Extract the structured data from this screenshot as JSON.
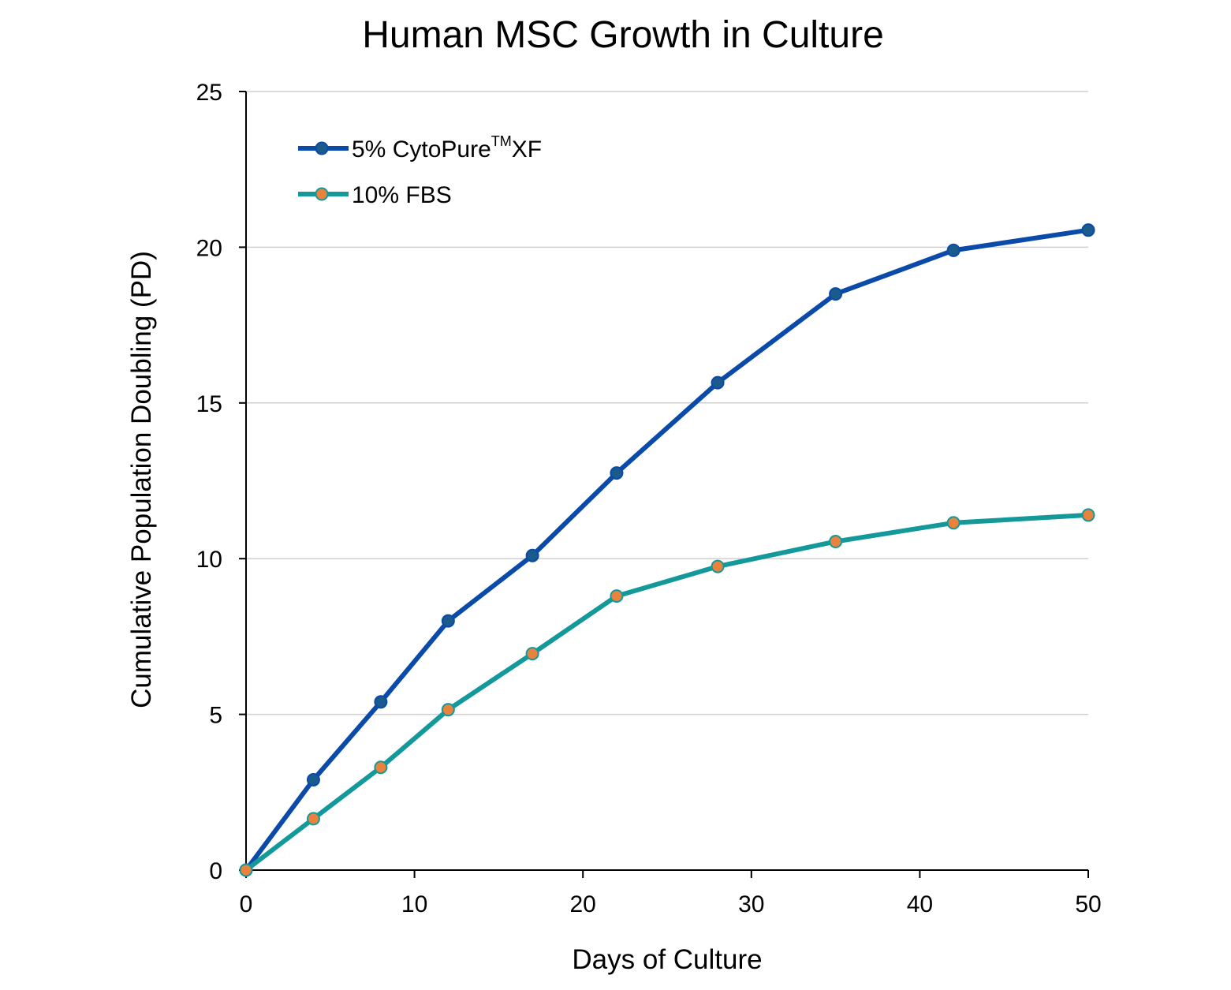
{
  "chart_data": {
    "type": "line",
    "title": "Human MSC Growth in Culture",
    "xlabel": "Days of Culture",
    "ylabel": "Cumulative Population Doubling (PD)",
    "xlim": [
      0,
      50
    ],
    "ylim": [
      0,
      25
    ],
    "xticks": [
      0,
      10,
      20,
      30,
      40,
      50
    ],
    "yticks": [
      0,
      5,
      10,
      15,
      20,
      25
    ],
    "grid": "horizontal",
    "legend_position": "top-left",
    "x": [
      0,
      4,
      8,
      12,
      17,
      22,
      28,
      35,
      42,
      50
    ],
    "series": [
      {
        "name": "5% CytoPure",
        "name_superscript": "TM",
        "name_suffix": "XF",
        "values": [
          0,
          2.9,
          5.4,
          8.0,
          10.1,
          12.75,
          15.65,
          18.5,
          19.9,
          20.55
        ],
        "line_color": "#0a4aa8",
        "marker_color": "#1a5a8c"
      },
      {
        "name": "10% FBS",
        "values": [
          0,
          1.65,
          3.3,
          5.15,
          6.95,
          8.8,
          9.75,
          10.55,
          11.15,
          11.4
        ],
        "line_color": "#14999b",
        "marker_color": "#e8823c"
      }
    ]
  }
}
